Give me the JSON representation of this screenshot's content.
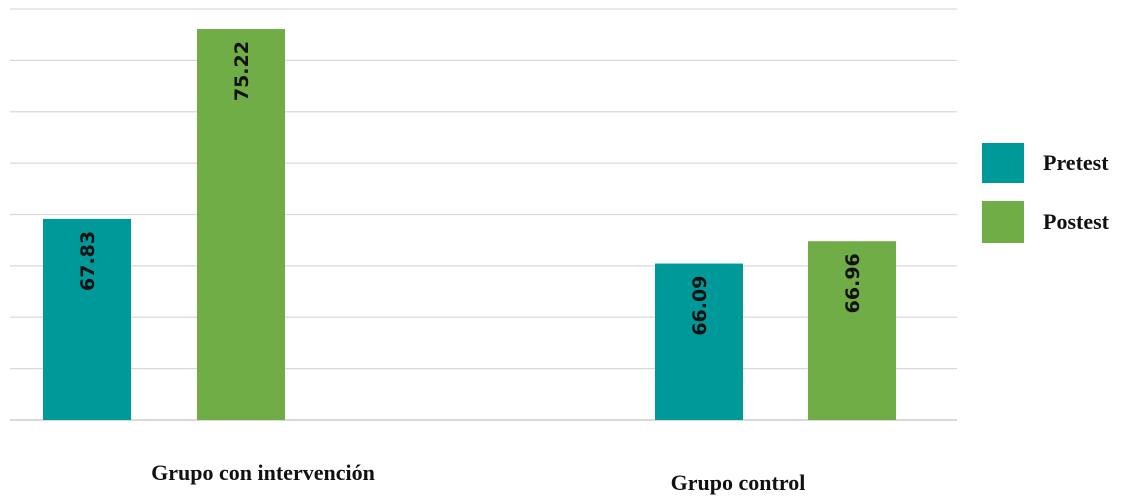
{
  "chart_data": {
    "type": "bar",
    "title": "",
    "xlabel": "",
    "ylabel": "",
    "categories": [
      "Grupo con intervención",
      "Grupo control"
    ],
    "series": [
      {
        "name": "Pretest",
        "color": "#009999",
        "values": [
          67.83,
          66.09
        ]
      },
      {
        "name": "Postest",
        "color": "#70AD47",
        "values": [
          75.22,
          66.96
        ]
      }
    ],
    "ylim": [
      60,
      76
    ],
    "grid": true,
    "legend": "right",
    "gridline_color": "#d9d9d9"
  }
}
